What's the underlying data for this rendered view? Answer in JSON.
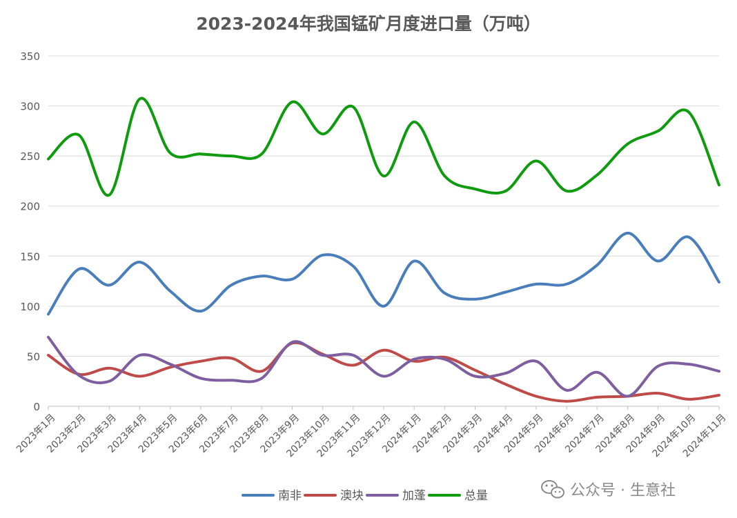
{
  "chart_data": {
    "type": "line",
    "title": "2023-2024年我国锰矿月度进口量（万吨）",
    "xlabel": "",
    "ylabel": "",
    "ylim": [
      0,
      350
    ],
    "yticks": [
      0,
      50,
      100,
      150,
      200,
      250,
      300,
      350
    ],
    "grid": true,
    "legend": "bottom",
    "categories": [
      "2023年1月",
      "2023年2月",
      "2023年3月",
      "2023年4月",
      "2023年5月",
      "2023年6月",
      "2023年7月",
      "2023年8月",
      "2023年9月",
      "2023年10月",
      "2023年11月",
      "2023年12月",
      "2024年1月",
      "2024年2月",
      "2024年3月",
      "2024年4月",
      "2024年5月",
      "2024年6月",
      "2024年7月",
      "2024年8月",
      "2024年9月",
      "2024年10月",
      "2024年11月"
    ],
    "series": [
      {
        "name": "南非",
        "color": "#4a7ebb",
        "values": [
          92,
          137,
          121,
          144,
          115,
          95,
          121,
          130,
          127,
          151,
          140,
          100,
          145,
          113,
          107,
          114,
          122,
          122,
          141,
          173,
          145,
          169,
          124
        ]
      },
      {
        "name": "澳块",
        "color": "#be4b48",
        "values": [
          51,
          32,
          38,
          30,
          39,
          45,
          48,
          35,
          63,
          52,
          41,
          56,
          45,
          49,
          36,
          22,
          10,
          5,
          9,
          10,
          13,
          7,
          11
        ]
      },
      {
        "name": "加蓬",
        "color": "#7d5fa0",
        "values": [
          69,
          31,
          25,
          51,
          42,
          28,
          26,
          28,
          64,
          51,
          51,
          30,
          47,
          47,
          30,
          33,
          45,
          16,
          34,
          10,
          40,
          42,
          35
        ]
      },
      {
        "name": "总量",
        "color": "#0e9b0e",
        "values": [
          247,
          271,
          211,
          307,
          253,
          252,
          250,
          252,
          304,
          272,
          299,
          230,
          284,
          230,
          217,
          215,
          245,
          215,
          231,
          262,
          275,
          294,
          221
        ]
      }
    ]
  },
  "watermark": {
    "text": "公众号 · 生意社",
    "icon": "wechat-icon"
  }
}
